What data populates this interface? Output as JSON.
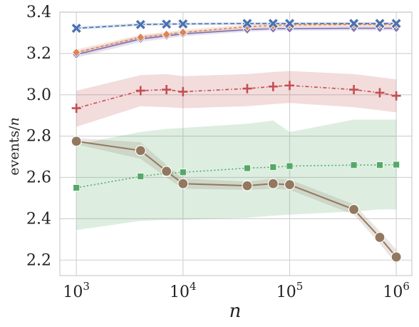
{
  "chart_data": {
    "type": "line",
    "xscale": "log",
    "xlabel_main": "n",
    "ylabel_main": "events/",
    "ylabel_italic": "n",
    "xlim": [
      700,
      1400000
    ],
    "ylim": [
      2.125,
      3.4
    ],
    "grid": true,
    "x_ticks": [
      {
        "v": 1000,
        "base": "10",
        "exp": "3"
      },
      {
        "v": 10000,
        "base": "10",
        "exp": "4"
      },
      {
        "v": 100000,
        "base": "10",
        "exp": "5"
      },
      {
        "v": 1000000,
        "base": "10",
        "exp": "6"
      }
    ],
    "y_ticks": [
      {
        "v": 2.2,
        "label": "2.2"
      },
      {
        "v": 2.4,
        "label": "2.4"
      },
      {
        "v": 2.6,
        "label": "2.6"
      },
      {
        "v": 2.8,
        "label": "2.8"
      },
      {
        "v": 3.0,
        "label": "3.0"
      },
      {
        "v": 3.2,
        "label": "3.2"
      },
      {
        "v": 3.4,
        "label": "3.4"
      }
    ],
    "series": [
      {
        "color": "#55a868",
        "marker": "square",
        "dash": "2,3",
        "x": [
          1000,
          4000,
          7000,
          10000,
          40000,
          70000,
          100000,
          400000,
          700000,
          1000000
        ],
        "y": [
          2.55,
          2.605,
          2.62,
          2.625,
          2.645,
          2.65,
          2.655,
          2.66,
          2.66,
          2.662
        ],
        "lo": [
          2.345,
          2.39,
          2.395,
          2.395,
          2.405,
          2.415,
          2.42,
          2.435,
          2.445,
          2.445
        ],
        "hi": [
          2.76,
          2.82,
          2.835,
          2.84,
          2.86,
          2.875,
          2.82,
          2.88,
          2.88,
          2.88
        ]
      },
      {
        "color": "#937860",
        "marker": "circle",
        "dash": "",
        "x": [
          1000,
          4000,
          7000,
          10000,
          40000,
          70000,
          100000,
          400000,
          700000,
          1000000
        ],
        "y": [
          2.775,
          2.73,
          2.63,
          2.57,
          2.56,
          2.57,
          2.565,
          2.445,
          2.31,
          2.215
        ],
        "lo": [
          2.76,
          2.69,
          2.6,
          2.545,
          2.54,
          2.545,
          2.54,
          2.42,
          2.28,
          2.18
        ],
        "hi": [
          2.79,
          2.77,
          2.66,
          2.595,
          2.58,
          2.595,
          2.59,
          2.47,
          2.34,
          2.25
        ]
      },
      {
        "color": "#c44e52",
        "marker": "plus",
        "dash": "5,3,1.5,3",
        "x": [
          1000,
          4000,
          7000,
          10000,
          40000,
          70000,
          100000,
          400000,
          700000,
          1000000
        ],
        "y": [
          2.935,
          3.02,
          3.025,
          3.015,
          3.03,
          3.04,
          3.045,
          3.025,
          3.01,
          2.995
        ],
        "lo": [
          2.845,
          2.945,
          2.94,
          2.935,
          2.945,
          2.955,
          2.96,
          2.94,
          2.925,
          2.915
        ],
        "hi": [
          3.02,
          3.095,
          3.1,
          3.09,
          3.1,
          3.11,
          3.115,
          3.1,
          3.085,
          3.075
        ]
      },
      {
        "color": "#8172b3",
        "marker": "diamond",
        "dash": "",
        "x": [
          1000,
          4000,
          7000,
          10000,
          40000,
          70000,
          100000,
          400000,
          700000,
          1000000
        ],
        "y": [
          3.195,
          3.27,
          3.285,
          3.295,
          3.315,
          3.32,
          3.32,
          3.322,
          3.322,
          3.322
        ],
        "lo": [
          3.18,
          3.255,
          3.272,
          3.283,
          3.305,
          3.31,
          3.31,
          3.312,
          3.312,
          3.312
        ],
        "hi": [
          3.21,
          3.285,
          3.298,
          3.307,
          3.325,
          3.33,
          3.33,
          3.332,
          3.332,
          3.332
        ]
      },
      {
        "color": "#dd8452",
        "marker": "diamond",
        "dash": "4,3",
        "x": [
          1000,
          4000,
          7000,
          10000,
          40000,
          70000,
          100000,
          400000,
          700000,
          1000000
        ],
        "y": [
          3.205,
          3.278,
          3.292,
          3.302,
          3.33,
          3.335,
          3.338,
          3.34,
          3.34,
          3.34
        ],
        "lo": [
          3.19,
          3.265,
          3.28,
          3.29,
          3.32,
          3.325,
          3.328,
          3.33,
          3.33,
          3.33
        ],
        "hi": [
          3.22,
          3.29,
          3.305,
          3.315,
          3.34,
          3.345,
          3.348,
          3.35,
          3.35,
          3.35
        ]
      },
      {
        "color": "#4c72b0",
        "marker": "x",
        "dash": "6,3",
        "x": [
          1000,
          4000,
          7000,
          10000,
          40000,
          70000,
          100000,
          400000,
          700000,
          1000000
        ],
        "y": [
          3.322,
          3.34,
          3.342,
          3.343,
          3.345,
          3.345,
          3.345,
          3.345,
          3.345,
          3.345
        ],
        "lo": [
          3.315,
          3.333,
          3.336,
          3.337,
          3.339,
          3.339,
          3.339,
          3.339,
          3.339,
          3.339
        ],
        "hi": [
          3.33,
          3.347,
          3.348,
          3.349,
          3.351,
          3.351,
          3.351,
          3.351,
          3.351,
          3.351
        ]
      }
    ]
  }
}
